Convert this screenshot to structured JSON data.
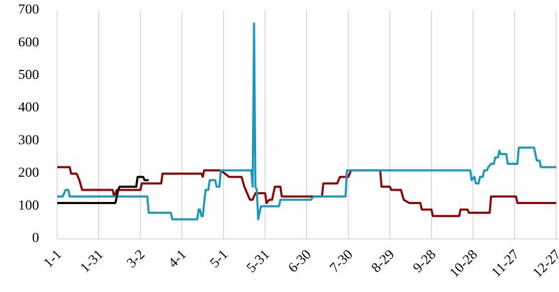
{
  "chart_data": {
    "type": "line",
    "xlim": [
      0,
      360
    ],
    "ylim": [
      0,
      700
    ],
    "yticks": [
      0,
      100,
      200,
      300,
      400,
      500,
      600,
      700
    ],
    "xticks": [
      {
        "value": 0,
        "label": "1-1"
      },
      {
        "value": 30,
        "label": "1-31"
      },
      {
        "value": 60,
        "label": "3-2"
      },
      {
        "value": 90,
        "label": "4-1"
      },
      {
        "value": 120,
        "label": "5-1"
      },
      {
        "value": 150,
        "label": "5-31"
      },
      {
        "value": 180,
        "label": "6-30"
      },
      {
        "value": 210,
        "label": "7-30"
      },
      {
        "value": 240,
        "label": "8-29"
      },
      {
        "value": 270,
        "label": "9-28"
      },
      {
        "value": 300,
        "label": "10-28"
      },
      {
        "value": 330,
        "label": "11-27"
      },
      {
        "value": 360,
        "label": "12-27"
      }
    ],
    "grid": true,
    "series": [
      {
        "color": "#8B0000",
        "x": [
          0,
          9,
          10,
          14,
          16,
          18,
          40,
          41,
          43,
          60,
          61,
          75,
          76,
          104,
          105,
          106,
          118,
          121,
          124,
          133,
          135,
          137,
          139,
          141,
          143,
          150,
          151,
          153,
          155,
          156,
          157,
          161,
          162,
          191,
          192,
          202,
          204,
          210,
          212,
          233,
          234,
          240,
          241,
          248,
          250,
          254,
          262,
          263,
          270,
          271,
          290,
          291,
          296,
          297,
          312,
          313,
          331,
          332,
          360
        ],
        "values": [
          220,
          220,
          200,
          200,
          180,
          150,
          150,
          130,
          150,
          150,
          170,
          170,
          200,
          200,
          190,
          210,
          210,
          200,
          190,
          190,
          160,
          140,
          120,
          120,
          140,
          140,
          110,
          120,
          120,
          140,
          160,
          160,
          130,
          130,
          170,
          170,
          190,
          190,
          210,
          210,
          160,
          160,
          150,
          150,
          120,
          110,
          110,
          90,
          90,
          70,
          70,
          90,
          90,
          80,
          80,
          130,
          130,
          110,
          110
        ]
      },
      {
        "color": "#1B97BA",
        "x": [
          0,
          4,
          6,
          8,
          9,
          65,
          66,
          82,
          83,
          101,
          102,
          103,
          104,
          105,
          107,
          109,
          110,
          114,
          115,
          117,
          118,
          140,
          141,
          142,
          143,
          144,
          145,
          147,
          160,
          161,
          183,
          185,
          208,
          209,
          298,
          299,
          301,
          302,
          304,
          305,
          307,
          308,
          310,
          311,
          313,
          315,
          316,
          318,
          319,
          320,
          324,
          325,
          332,
          333,
          344,
          346,
          348,
          349,
          360
        ],
        "values": [
          130,
          130,
          150,
          150,
          130,
          130,
          80,
          80,
          60,
          60,
          90,
          90,
          70,
          70,
          150,
          150,
          180,
          180,
          160,
          160,
          210,
          210,
          160,
          660,
          160,
          150,
          60,
          100,
          100,
          120,
          120,
          130,
          130,
          210,
          210,
          180,
          190,
          170,
          170,
          190,
          190,
          210,
          210,
          220,
          230,
          230,
          250,
          250,
          270,
          260,
          260,
          230,
          230,
          280,
          280,
          240,
          240,
          220,
          220
        ]
      },
      {
        "color": "#000000",
        "x": [
          0,
          42,
          44,
          45,
          57,
          58,
          62,
          63,
          66
        ],
        "values": [
          110,
          110,
          150,
          160,
          160,
          190,
          190,
          180,
          180
        ]
      }
    ]
  }
}
